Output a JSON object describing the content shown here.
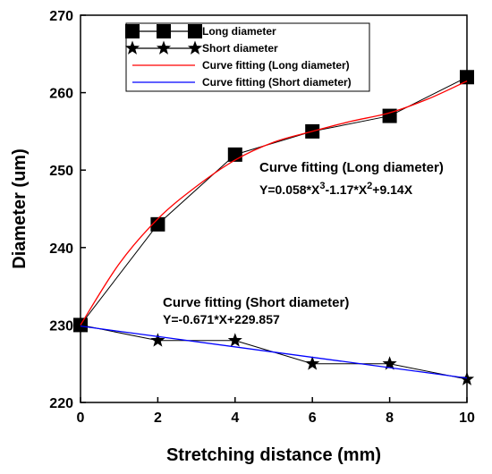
{
  "chart_data": {
    "type": "line",
    "title": "",
    "xlabel": "Stretching distance (mm)",
    "ylabel": "Diameter (um)",
    "xlim": [
      0,
      10
    ],
    "ylim": [
      220,
      270
    ],
    "xticks": [
      "0",
      "2",
      "4",
      "6",
      "8",
      "10"
    ],
    "yticks": [
      "220",
      "230",
      "240",
      "250",
      "260",
      "270"
    ],
    "grid": false,
    "legend_position": "top-left",
    "series": [
      {
        "name": "Long diameter",
        "kind": "markers-line",
        "marker": "square",
        "color": "#000000",
        "x": [
          0,
          2,
          4,
          6,
          8,
          10
        ],
        "y": [
          230,
          243,
          252,
          255,
          257,
          262
        ]
      },
      {
        "name": "Short diameter",
        "kind": "markers-line",
        "marker": "star",
        "color": "#000000",
        "x": [
          0,
          2,
          4,
          6,
          8,
          10
        ],
        "y": [
          230,
          228,
          228,
          225,
          225,
          223
        ]
      },
      {
        "name": "Curve fitting (Long diameter)",
        "kind": "fit",
        "color": "#ff0000",
        "x": [
          0,
          1,
          2,
          3,
          4,
          5,
          6,
          7,
          8,
          9,
          10
        ],
        "y": [
          230,
          237.9,
          243.7,
          247.9,
          251.3,
          253.6,
          255.0,
          256.3,
          257.4,
          259.2,
          261.5
        ]
      },
      {
        "name": "Curve fitting (Short diameter)",
        "kind": "fit",
        "color": "#0000ff",
        "x": [
          0,
          10
        ],
        "y": [
          229.857,
          223.147
        ]
      }
    ],
    "annotations": [
      {
        "title": "Curve fitting (Long diameter)",
        "equation": [
          "Y=0.058*X",
          "3",
          "-1.17*X",
          "2",
          "+9.14X"
        ]
      },
      {
        "title": "Curve fitting (Short diameter)",
        "equation": [
          "Y=-0.671*X+229.857"
        ]
      }
    ]
  }
}
